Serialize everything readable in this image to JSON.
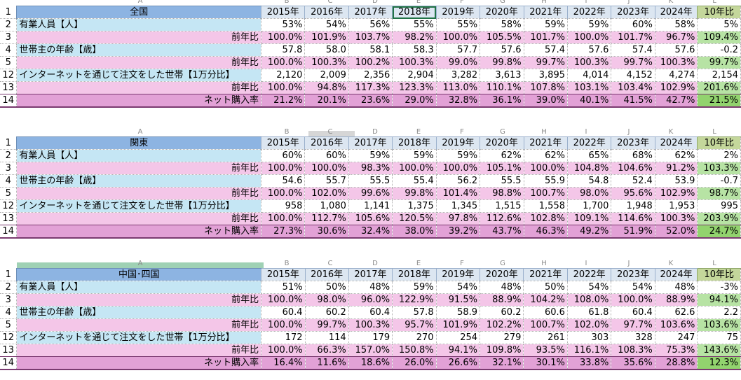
{
  "blocks": [
    {
      "header_letters": [
        "A",
        "B",
        "C",
        "D",
        "E",
        "F",
        "G",
        "H",
        "I",
        "J",
        "K",
        "L"
      ],
      "title": "全国",
      "years": [
        "2015年",
        "2016年",
        "2017年",
        "2018年",
        "2019年",
        "2020年",
        "2021年",
        "2022年",
        "2023年",
        "2024年"
      ],
      "ratio_header": "10年比",
      "rows": [
        {
          "rn": "1",
          "kind": "header"
        },
        {
          "rn": "2",
          "kind": "blue",
          "label": "有業人員【人】",
          "values": [
            "53%",
            "54%",
            "56%",
            "55%",
            "55%",
            "58%",
            "59%",
            "59%",
            "60%",
            "58%"
          ],
          "ratio": "5%"
        },
        {
          "rn": "3",
          "kind": "pink",
          "label": "前年比",
          "values": [
            "100.0%",
            "101.9%",
            "103.7%",
            "98.2%",
            "100.0%",
            "105.5%",
            "101.7%",
            "100.0%",
            "101.7%",
            "96.7%"
          ],
          "ratio": "109.4%"
        },
        {
          "rn": "4",
          "kind": "blue",
          "label": "世帯主の年齢【歳】",
          "values": [
            "57.8",
            "58.0",
            "58.1",
            "58.3",
            "57.7",
            "57.6",
            "57.4",
            "57.6",
            "57.4",
            "57.6"
          ],
          "ratio": "-0.2"
        },
        {
          "rn": "5",
          "kind": "pink",
          "label": "前年比",
          "values": [
            "100.0%",
            "100.3%",
            "100.2%",
            "100.3%",
            "99.0%",
            "99.8%",
            "99.7%",
            "100.3%",
            "99.7%",
            "100.3%"
          ],
          "ratio": "99.7%"
        },
        {
          "rn": "12",
          "kind": "blue",
          "label": "インターネットを通じて注文をした世帯【1万分比】",
          "values": [
            "2,120",
            "2,009",
            "2,356",
            "2,904",
            "3,282",
            "3,613",
            "3,895",
            "4,014",
            "4,152",
            "4,274"
          ],
          "ratio": "2,154"
        },
        {
          "rn": "13",
          "kind": "pink",
          "label": "前年比",
          "values": [
            "100.0%",
            "94.8%",
            "117.3%",
            "123.3%",
            "113.0%",
            "110.1%",
            "107.8%",
            "103.1%",
            "103.4%",
            "102.9%"
          ],
          "ratio": "201.6%"
        },
        {
          "rn": "14",
          "kind": "mag",
          "label": "ネット購入率",
          "values": [
            "21.2%",
            "20.1%",
            "23.6%",
            "29.0%",
            "32.8%",
            "36.1%",
            "39.0%",
            "40.1%",
            "41.5%",
            "42.7%"
          ],
          "ratio": "21.5%"
        }
      ]
    },
    {
      "header_letters": [
        "A",
        "B",
        "C",
        "D",
        "E",
        "F",
        "G",
        "H",
        "I",
        "J",
        "K",
        "L"
      ],
      "title": "関東",
      "years": [
        "2015年",
        "2016年",
        "2017年",
        "2018年",
        "2019年",
        "2020年",
        "2021年",
        "2022年",
        "2023年",
        "2024年"
      ],
      "ratio_header": "10年比",
      "rows": [
        {
          "rn": "1",
          "kind": "header"
        },
        {
          "rn": "2",
          "kind": "blue",
          "label": "有業人員【人】",
          "values": [
            "60%",
            "60%",
            "59%",
            "59%",
            "59%",
            "62%",
            "62%",
            "65%",
            "68%",
            "62%"
          ],
          "ratio": "2%"
        },
        {
          "rn": "3",
          "kind": "pink",
          "label": "前年比",
          "values": [
            "100.0%",
            "100.0%",
            "98.3%",
            "100.0%",
            "100.0%",
            "105.1%",
            "100.0%",
            "104.8%",
            "104.6%",
            "91.2%"
          ],
          "ratio": "103.3%"
        },
        {
          "rn": "4",
          "kind": "blue",
          "label": "世帯主の年齢【歳】",
          "values": [
            "54.6",
            "55.7",
            "55.5",
            "55.4",
            "56.2",
            "55.5",
            "55.9",
            "54.8",
            "52.4",
            "53.9"
          ],
          "ratio": "-0.7"
        },
        {
          "rn": "5",
          "kind": "pink",
          "label": "前年比",
          "values": [
            "100.0%",
            "102.0%",
            "99.6%",
            "99.8%",
            "101.4%",
            "98.8%",
            "100.7%",
            "98.0%",
            "95.6%",
            "102.9%"
          ],
          "ratio": "98.7%"
        },
        {
          "rn": "12",
          "kind": "blue",
          "label": "インターネットを通じて注文をした世帯【1万分比】",
          "values": [
            "958",
            "1,080",
            "1,141",
            "1,375",
            "1,345",
            "1,515",
            "1,558",
            "1,700",
            "1,948",
            "1,953"
          ],
          "ratio": "995"
        },
        {
          "rn": "13",
          "kind": "pink",
          "label": "前年比",
          "values": [
            "100.0%",
            "112.7%",
            "105.6%",
            "120.5%",
            "97.8%",
            "112.6%",
            "102.8%",
            "109.1%",
            "114.6%",
            "100.3%"
          ],
          "ratio": "203.9%"
        },
        {
          "rn": "14",
          "kind": "mag",
          "label": "ネット購入率",
          "values": [
            "27.3%",
            "30.6%",
            "32.4%",
            "38.0%",
            "39.2%",
            "43.7%",
            "46.3%",
            "49.2%",
            "51.9%",
            "52.0%"
          ],
          "ratio": "24.7%"
        }
      ]
    },
    {
      "header_letters": [
        "A",
        "B",
        "C",
        "D",
        "E",
        "F",
        "G",
        "H",
        "I",
        "J",
        "K",
        "L"
      ],
      "title": "中国･四国",
      "years": [
        "2015年",
        "2016年",
        "2017年",
        "2018年",
        "2019年",
        "2020年",
        "2021年",
        "2022年",
        "2023年",
        "2024年"
      ],
      "ratio_header": "10年比",
      "rows": [
        {
          "rn": "1",
          "kind": "header"
        },
        {
          "rn": "2",
          "kind": "blue",
          "label": "有業人員【人】",
          "values": [
            "51%",
            "50%",
            "48%",
            "59%",
            "54%",
            "48%",
            "50%",
            "54%",
            "54%",
            "48%"
          ],
          "ratio": "-3%"
        },
        {
          "rn": "3",
          "kind": "pink",
          "label": "前年比",
          "values": [
            "100.0%",
            "98.0%",
            "96.0%",
            "122.9%",
            "91.5%",
            "88.9%",
            "104.2%",
            "108.0%",
            "100.0%",
            "88.9%"
          ],
          "ratio": "94.1%"
        },
        {
          "rn": "4",
          "kind": "blue",
          "label": "世帯主の年齢【歳】",
          "values": [
            "60.4",
            "60.2",
            "60.4",
            "57.8",
            "58.9",
            "60.2",
            "60.6",
            "61.8",
            "60.4",
            "62.6"
          ],
          "ratio": "2.2"
        },
        {
          "rn": "5",
          "kind": "pink",
          "label": "前年比",
          "values": [
            "100.0%",
            "99.7%",
            "100.3%",
            "95.7%",
            "101.9%",
            "102.2%",
            "100.7%",
            "102.0%",
            "97.7%",
            "103.6%"
          ],
          "ratio": "103.6%"
        },
        {
          "rn": "12",
          "kind": "blue",
          "label": "インターネットを通じて注文をした世帯【1万分比】",
          "values": [
            "172",
            "114",
            "179",
            "270",
            "254",
            "279",
            "261",
            "303",
            "328",
            "247"
          ],
          "ratio": "75"
        },
        {
          "rn": "13",
          "kind": "pink",
          "label": "前年比",
          "values": [
            "100.0%",
            "66.3%",
            "157.0%",
            "150.8%",
            "94.1%",
            "109.8%",
            "93.5%",
            "116.1%",
            "108.3%",
            "75.3%"
          ],
          "ratio": "143.6%"
        },
        {
          "rn": "14",
          "kind": "mag",
          "label": "ネット購入率",
          "values": [
            "16.4%",
            "11.6%",
            "18.6%",
            "26.0%",
            "26.6%",
            "32.1%",
            "30.1%",
            "33.8%",
            "35.6%",
            "28.8%"
          ],
          "ratio": "12.3%"
        }
      ]
    }
  ]
}
